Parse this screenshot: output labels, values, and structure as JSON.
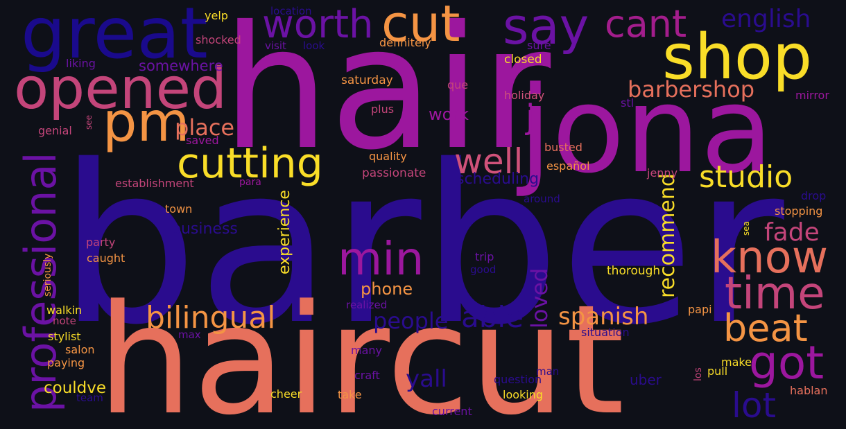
{
  "colors": {
    "background": "#0e1018",
    "palette": {
      "indigo": "#2a0c8e",
      "deep_blue": "#1a0a8c",
      "purple": "#6b12a4",
      "magenta": "#9c179e",
      "rose": "#c4457a",
      "salmon": "#e6705c",
      "orange": "#f49444",
      "yellow": "#f9dd28"
    }
  },
  "words": [
    {
      "id": "barber",
      "text": "barber",
      "color": "#2a0c8e"
    },
    {
      "id": "hair",
      "text": "hair",
      "color": "#9c179e"
    },
    {
      "id": "haircut",
      "text": "haircut",
      "color": "#e6705c"
    },
    {
      "id": "jona",
      "text": "jona",
      "color": "#9c179e"
    },
    {
      "id": "great",
      "text": "great",
      "color": "#1a0a8c"
    },
    {
      "id": "shop",
      "text": "shop",
      "color": "#f9dd28"
    },
    {
      "id": "opened",
      "text": "opened",
      "color": "#c4457a"
    },
    {
      "id": "cut",
      "text": "cut",
      "color": "#f49444"
    },
    {
      "id": "say",
      "text": "say",
      "color": "#6b12a4"
    },
    {
      "id": "worth",
      "text": "worth",
      "color": "#6b12a4"
    },
    {
      "id": "cant",
      "text": "cant",
      "color": "#a31d8c"
    },
    {
      "id": "english",
      "text": "english",
      "color": "#2a0c8e"
    },
    {
      "id": "pm",
      "text": "pm",
      "color": "#f49444"
    },
    {
      "id": "cutting",
      "text": "cutting",
      "color": "#f9dd28"
    },
    {
      "id": "place",
      "text": "place",
      "color": "#e6705c"
    },
    {
      "id": "professional",
      "text": "professional",
      "color": "#6b12a4"
    },
    {
      "id": "well",
      "text": "well",
      "color": "#d0527a"
    },
    {
      "id": "j",
      "text": "j",
      "color": "#9c179e"
    },
    {
      "id": "barbershop",
      "text": "barbershop",
      "color": "#e6705c"
    },
    {
      "id": "studio",
      "text": "studio",
      "color": "#f9dd28"
    },
    {
      "id": "know",
      "text": "know",
      "color": "#e6705c"
    },
    {
      "id": "time",
      "text": "time",
      "color": "#c4457a"
    },
    {
      "id": "min",
      "text": "min",
      "color": "#9c179e"
    },
    {
      "id": "bilingual",
      "text": "bilingual",
      "color": "#f49444"
    },
    {
      "id": "beat",
      "text": "beat",
      "color": "#f49444"
    },
    {
      "id": "got",
      "text": "got",
      "color": "#9c179e"
    },
    {
      "id": "lot",
      "text": "lot",
      "color": "#2a0c8e"
    },
    {
      "id": "able",
      "text": "able",
      "color": "#2a0c8e"
    },
    {
      "id": "people",
      "text": "people",
      "color": "#2a0c8e"
    },
    {
      "id": "spanish",
      "text": "spanish",
      "color": "#f49444"
    },
    {
      "id": "recommend",
      "text": "recommend",
      "color": "#f9dd28"
    },
    {
      "id": "loved",
      "text": "loved",
      "color": "#6b12a4"
    },
    {
      "id": "fade",
      "text": "fade",
      "color": "#c4457a"
    },
    {
      "id": "experience",
      "text": "experience",
      "color": "#f9dd28"
    },
    {
      "id": "yall",
      "text": "yall",
      "color": "#2a0c8e"
    },
    {
      "id": "phone",
      "text": "phone",
      "color": "#f49444"
    },
    {
      "id": "couldve",
      "text": "couldve",
      "color": "#f9dd28"
    },
    {
      "id": "business",
      "text": "business",
      "color": "#2a0c8e"
    },
    {
      "id": "scheduling",
      "text": "scheduling",
      "color": "#2a0c8e"
    },
    {
      "id": "work",
      "text": "work",
      "color": "#9c179e"
    },
    {
      "id": "somewhere",
      "text": "somewhere",
      "color": "#6b12a4"
    },
    {
      "id": "uber",
      "text": "uber",
      "color": "#2a0c8e"
    },
    {
      "id": "yelp",
      "text": "yelp",
      "color": "#f9dd28"
    },
    {
      "id": "location",
      "text": "location",
      "color": "#2a0c8e"
    },
    {
      "id": "shocked",
      "text": "shocked",
      "color": "#c4457a"
    },
    {
      "id": "visit",
      "text": "visit",
      "color": "#6b12a4"
    },
    {
      "id": "look",
      "text": "look",
      "color": "#2a0c8e"
    },
    {
      "id": "definitely",
      "text": "definitely",
      "color": "#f49444"
    },
    {
      "id": "sure",
      "text": "sure",
      "color": "#6b12a4"
    },
    {
      "id": "closed",
      "text": "closed",
      "color": "#f9dd28"
    },
    {
      "id": "liking",
      "text": "liking",
      "color": "#6b12a4"
    },
    {
      "id": "saturday",
      "text": "saturday",
      "color": "#f49444"
    },
    {
      "id": "que",
      "text": "que",
      "color": "#c4457a"
    },
    {
      "id": "holiday",
      "text": "holiday",
      "color": "#d0527a"
    },
    {
      "id": "stl",
      "text": "stl",
      "color": "#6b12a4"
    },
    {
      "id": "mirror",
      "text": "mirror",
      "color": "#9c179e"
    },
    {
      "id": "genial",
      "text": "genial",
      "color": "#c4457a"
    },
    {
      "id": "see",
      "text": "see",
      "color": "#c4457a"
    },
    {
      "id": "plus",
      "text": "plus",
      "color": "#c4457a"
    },
    {
      "id": "saved",
      "text": "saved",
      "color": "#9c179e"
    },
    {
      "id": "quality",
      "text": "quality",
      "color": "#f49444"
    },
    {
      "id": "busted",
      "text": "busted",
      "color": "#e6705c"
    },
    {
      "id": "passionate",
      "text": "passionate",
      "color": "#c4457a"
    },
    {
      "id": "espanol",
      "text": "español",
      "color": "#f49444"
    },
    {
      "id": "jenny",
      "text": "jenny",
      "color": "#c4457a"
    },
    {
      "id": "establishment",
      "text": "establishment",
      "color": "#c4457a"
    },
    {
      "id": "para",
      "text": "para",
      "color": "#9c179e"
    },
    {
      "id": "drop",
      "text": "drop",
      "color": "#2a0c8e"
    },
    {
      "id": "around",
      "text": "around",
      "color": "#2a0c8e"
    },
    {
      "id": "stopping",
      "text": "stopping",
      "color": "#f49444"
    },
    {
      "id": "town",
      "text": "town",
      "color": "#f49444"
    },
    {
      "id": "sea",
      "text": "sea",
      "color": "#f9dd28"
    },
    {
      "id": "party",
      "text": "party",
      "color": "#c4457a"
    },
    {
      "id": "caught",
      "text": "caught",
      "color": "#f49444"
    },
    {
      "id": "seriously",
      "text": "seriously",
      "color": "#f49444"
    },
    {
      "id": "trip",
      "text": "trip",
      "color": "#6b12a4"
    },
    {
      "id": "good",
      "text": "good",
      "color": "#2a0c8e"
    },
    {
      "id": "thorough",
      "text": "thorough",
      "color": "#f9dd28"
    },
    {
      "id": "realized",
      "text": "realized",
      "color": "#6b12a4"
    },
    {
      "id": "papi",
      "text": "papi",
      "color": "#f49444"
    },
    {
      "id": "walkin",
      "text": "walkin",
      "color": "#f9dd28"
    },
    {
      "id": "note",
      "text": "note",
      "color": "#c4457a"
    },
    {
      "id": "stylist",
      "text": "stylist",
      "color": "#f9dd28"
    },
    {
      "id": "max",
      "text": "max",
      "color": "#6b12a4"
    },
    {
      "id": "situation",
      "text": "situation",
      "color": "#2a0c8e"
    },
    {
      "id": "salon",
      "text": "salon",
      "color": "#f49444"
    },
    {
      "id": "many",
      "text": "many",
      "color": "#6b12a4"
    },
    {
      "id": "paying",
      "text": "paying",
      "color": "#f49444"
    },
    {
      "id": "make",
      "text": "make",
      "color": "#f9dd28"
    },
    {
      "id": "pull",
      "text": "pull",
      "color": "#f9dd28"
    },
    {
      "id": "los",
      "text": "los",
      "color": "#c4457a"
    },
    {
      "id": "craft",
      "text": "craft",
      "color": "#6b12a4"
    },
    {
      "id": "man",
      "text": "man",
      "color": "#2a0c8e"
    },
    {
      "id": "question",
      "text": "question",
      "color": "#2a0c8e"
    },
    {
      "id": "team",
      "text": "team",
      "color": "#2a0c8e"
    },
    {
      "id": "cheer",
      "text": "cheer",
      "color": "#f9dd28"
    },
    {
      "id": "take",
      "text": "take",
      "color": "#f49444"
    },
    {
      "id": "looking",
      "text": "looking",
      "color": "#f9dd28"
    },
    {
      "id": "hablan",
      "text": "hablan",
      "color": "#e6705c"
    },
    {
      "id": "current",
      "text": "current",
      "color": "#6b12a4"
    }
  ]
}
